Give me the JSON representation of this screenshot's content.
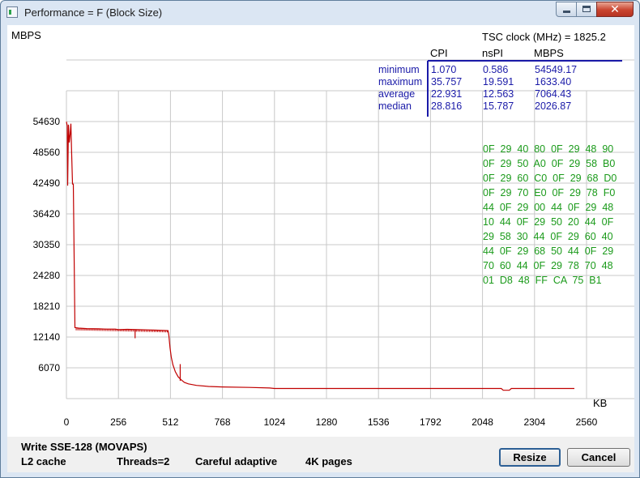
{
  "window": {
    "title": "Performance = F (Block Size)"
  },
  "plot": {
    "y_unit": "MBPS",
    "x_unit": "KB",
    "y_ticks": [
      "54630",
      "48560",
      "42490",
      "36420",
      "30350",
      "24280",
      "18210",
      "12140",
      "6070"
    ],
    "x_ticks": [
      "0",
      "256",
      "512",
      "768",
      "1024",
      "1280",
      "1536",
      "1792",
      "2048",
      "2304",
      "2560"
    ],
    "tsc_label": "TSC clock (MHz)  = 1825.2",
    "stats_columns": [
      "CPI",
      "nsPI",
      "MBPS"
    ],
    "stats_rows": [
      {
        "label": "minimum",
        "cpi": "1.070",
        "nspi": "0.586",
        "mbps": "54549.17"
      },
      {
        "label": "maximum",
        "cpi": "35.757",
        "nspi": "19.591",
        "mbps": "1633.40"
      },
      {
        "label": "average",
        "cpi": "22.931",
        "nspi": "12.563",
        "mbps": "7064.43"
      },
      {
        "label": "median",
        "cpi": "28.816",
        "nspi": "15.787",
        "mbps": "2026.87"
      }
    ],
    "hex_lines": [
      "0F  29  40  80  0F  29  48  90",
      "0F  29  50  A0  0F  29  58  B0",
      "0F  29  60  C0  0F  29  68  D0",
      "0F  29  70  E0  0F  29  78  F0",
      "44  0F  29  00  44  0F  29  48",
      "10  44  0F  29  50  20  44  0F",
      "29  58  30  44  0F  29  60  40",
      "44  0F  29  68  50  44  0F  29",
      "70  60  44  0F  29  78  70  48",
      "01  D8  48  FF  CA  75  B1"
    ],
    "colors": {
      "grid": "#c8c8c8",
      "axis_text": "#000000",
      "stats": "#1a1aa8",
      "hex": "#1a9a1a",
      "series": "#c00000"
    }
  },
  "chart_data": {
    "type": "line",
    "xlabel": "KB",
    "ylabel": "MBPS",
    "xlim": [
      0,
      2816
    ],
    "ylim": [
      0,
      60700
    ],
    "series": [
      {
        "points": [
          [
            0,
            54600
          ],
          [
            4,
            53800
          ],
          [
            6,
            42000
          ],
          [
            10,
            54000
          ],
          [
            14,
            50500
          ],
          [
            18,
            52000
          ],
          [
            22,
            54200
          ],
          [
            26,
            48000
          ],
          [
            30,
            42300
          ],
          [
            34,
            42300
          ],
          [
            42,
            14000
          ],
          [
            60,
            13900
          ],
          [
            100,
            13800
          ],
          [
            160,
            13750
          ],
          [
            200,
            13700
          ],
          [
            240,
            13700
          ],
          [
            256,
            13600
          ],
          [
            300,
            13650
          ],
          [
            350,
            13600
          ],
          [
            400,
            13550
          ],
          [
            440,
            13500
          ],
          [
            480,
            13450
          ],
          [
            500,
            13400
          ],
          [
            504,
            12500
          ],
          [
            510,
            10000
          ],
          [
            516,
            8200
          ],
          [
            524,
            6700
          ],
          [
            536,
            5300
          ],
          [
            550,
            4300
          ],
          [
            565,
            3700
          ],
          [
            580,
            3200
          ],
          [
            600,
            2900
          ],
          [
            640,
            2600
          ],
          [
            700,
            2400
          ],
          [
            768,
            2300
          ],
          [
            900,
            2200
          ],
          [
            1000,
            2100
          ],
          [
            1024,
            2000
          ],
          [
            1300,
            2000
          ],
          [
            1600,
            2000
          ],
          [
            1792,
            2000
          ],
          [
            2000,
            2000
          ],
          [
            2140,
            2000
          ],
          [
            2150,
            1650
          ],
          [
            2180,
            1650
          ],
          [
            2190,
            2000
          ],
          [
            2304,
            2000
          ],
          [
            2500,
            2000
          ]
        ]
      }
    ],
    "dips": [
      {
        "x": 338,
        "y": 11900
      },
      {
        "x": 560,
        "y": 6800
      }
    ]
  },
  "footer": {
    "test_name": "Write SSE-128 (MOVAPS)",
    "cache": "L2 cache",
    "threads": "Threads=2",
    "mode": "Careful adaptive",
    "pages": "4K pages"
  },
  "buttons": {
    "resize": "Resize",
    "cancel": "Cancel"
  }
}
